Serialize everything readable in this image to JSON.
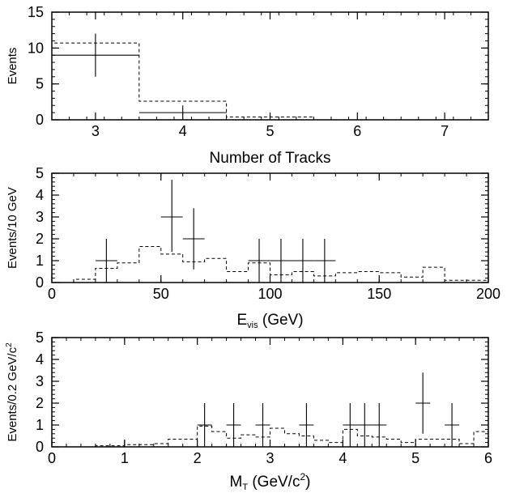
{
  "chart_data": [
    {
      "type": "histogram",
      "ylabel": "Events",
      "xlabel": "Number of Tracks",
      "xlim": [
        2.5,
        7.5
      ],
      "ylim": [
        0,
        15
      ],
      "xticks": [
        3,
        4,
        5,
        6,
        7
      ],
      "yticks": [
        0,
        5,
        10,
        15
      ],
      "series": [
        {
          "style": "data",
          "points": [
            {
              "x": 3,
              "y": 9,
              "xerr": 0.5,
              "yerr": [
                3,
                3
              ]
            },
            {
              "x": 4,
              "y": 1,
              "xerr": 0.5,
              "yerr": [
                0,
                1
              ]
            }
          ]
        },
        {
          "style": "dashed-histogram",
          "bins": [
            {
              "x0": 2.5,
              "x1": 3.5,
              "y": 10.7
            },
            {
              "x0": 3.5,
              "x1": 4.5,
              "y": 2.6
            },
            {
              "x0": 4.5,
              "x1": 5.5,
              "y": 0.4
            }
          ]
        }
      ]
    },
    {
      "type": "histogram",
      "ylabel": "Events/10 GeV",
      "xlabel_main": "E",
      "xlabel_sub": "vis",
      "xlabel_rest": " (GeV)",
      "xlim": [
        0,
        200
      ],
      "ylim": [
        0,
        5
      ],
      "xticks": [
        0,
        50,
        100,
        150,
        200
      ],
      "yticks": [
        0,
        1,
        2,
        3,
        4,
        5
      ],
      "series": [
        {
          "style": "data",
          "points": [
            {
              "x": 25,
              "y": 1,
              "xerr": 5,
              "yerr": [
                1,
                1
              ]
            },
            {
              "x": 55,
              "y": 3,
              "xerr": 5,
              "yerr": [
                1.6,
                1.7
              ]
            },
            {
              "x": 65,
              "y": 2,
              "xerr": 5,
              "yerr": [
                1.4,
                1.4
              ]
            },
            {
              "x": 95,
              "y": 1,
              "xerr": 5,
              "yerr": [
                1,
                1
              ]
            },
            {
              "x": 105,
              "y": 1,
              "xerr": 5,
              "yerr": [
                1,
                1
              ]
            },
            {
              "x": 115,
              "y": 1,
              "xerr": 5,
              "yerr": [
                1,
                1
              ]
            },
            {
              "x": 125,
              "y": 1,
              "xerr": 5,
              "yerr": [
                1,
                1
              ]
            }
          ]
        },
        {
          "style": "dashed-histogram",
          "bins": [
            {
              "x0": 10,
              "x1": 20,
              "y": 0.15
            },
            {
              "x0": 20,
              "x1": 30,
              "y": 0.65
            },
            {
              "x0": 30,
              "x1": 40,
              "y": 0.9
            },
            {
              "x0": 40,
              "x1": 50,
              "y": 1.65
            },
            {
              "x0": 50,
              "x1": 60,
              "y": 1.3
            },
            {
              "x0": 60,
              "x1": 70,
              "y": 0.95
            },
            {
              "x0": 70,
              "x1": 80,
              "y": 1.1
            },
            {
              "x0": 80,
              "x1": 90,
              "y": 0.5
            },
            {
              "x0": 90,
              "x1": 100,
              "y": 0.9
            },
            {
              "x0": 100,
              "x1": 110,
              "y": 0.35
            },
            {
              "x0": 110,
              "x1": 120,
              "y": 0.5
            },
            {
              "x0": 120,
              "x1": 130,
              "y": 0.3
            },
            {
              "x0": 130,
              "x1": 140,
              "y": 0.45
            },
            {
              "x0": 140,
              "x1": 150,
              "y": 0.5
            },
            {
              "x0": 150,
              "x1": 160,
              "y": 0.45
            },
            {
              "x0": 160,
              "x1": 170,
              "y": 0.25
            },
            {
              "x0": 170,
              "x1": 180,
              "y": 0.7
            },
            {
              "x0": 180,
              "x1": 200,
              "y": 0.1
            }
          ]
        }
      ]
    },
    {
      "type": "histogram",
      "ylabel_main": "Events/0.2 GeV/c",
      "ylabel_sup": "2",
      "xlabel_main": "M",
      "xlabel_sub": "T",
      "xlabel_rest": " (GeV/c",
      "xlabel_sup": "2",
      "xlabel_end": ")",
      "xlim": [
        0,
        6
      ],
      "ylim": [
        0,
        5
      ],
      "xticks": [
        0,
        1,
        2,
        3,
        4,
        5,
        6
      ],
      "yticks": [
        0,
        1,
        2,
        3,
        4,
        5
      ],
      "series": [
        {
          "style": "data",
          "points": [
            {
              "x": 1.0,
              "y": 0,
              "xerr": 0,
              "yerr": [
                0,
                0.3
              ]
            },
            {
              "x": 2.1,
              "y": 1,
              "xerr": 0.1,
              "yerr": [
                1,
                1
              ]
            },
            {
              "x": 2.5,
              "y": 1,
              "xerr": 0.1,
              "yerr": [
                1,
                1
              ]
            },
            {
              "x": 2.9,
              "y": 1,
              "xerr": 0.1,
              "yerr": [
                1,
                1
              ]
            },
            {
              "x": 3.5,
              "y": 1,
              "xerr": 0.1,
              "yerr": [
                1,
                1
              ]
            },
            {
              "x": 4.1,
              "y": 1,
              "xerr": 0.1,
              "yerr": [
                1,
                1
              ]
            },
            {
              "x": 4.3,
              "y": 1,
              "xerr": 0.1,
              "yerr": [
                1,
                1
              ]
            },
            {
              "x": 4.5,
              "y": 1,
              "xerr": 0.1,
              "yerr": [
                1,
                1
              ]
            },
            {
              "x": 5.1,
              "y": 2,
              "xerr": 0.1,
              "yerr": [
                1.4,
                1.4
              ]
            },
            {
              "x": 5.5,
              "y": 1,
              "xerr": 0.1,
              "yerr": [
                1,
                1
              ]
            }
          ]
        },
        {
          "style": "dashed-histogram",
          "bins": [
            {
              "x0": 0.6,
              "x1": 1.0,
              "y": 0.05
            },
            {
              "x0": 1.0,
              "x1": 1.4,
              "y": 0.1
            },
            {
              "x0": 1.4,
              "x1": 1.6,
              "y": 0.15
            },
            {
              "x0": 1.6,
              "x1": 2.0,
              "y": 0.35
            },
            {
              "x0": 2.0,
              "x1": 2.2,
              "y": 0.95
            },
            {
              "x0": 2.2,
              "x1": 2.4,
              "y": 0.7
            },
            {
              "x0": 2.4,
              "x1": 2.6,
              "y": 0.4
            },
            {
              "x0": 2.6,
              "x1": 2.8,
              "y": 0.55
            },
            {
              "x0": 2.8,
              "x1": 3.0,
              "y": 0.45
            },
            {
              "x0": 3.0,
              "x1": 3.2,
              "y": 0.85
            },
            {
              "x0": 3.2,
              "x1": 3.4,
              "y": 0.6
            },
            {
              "x0": 3.4,
              "x1": 3.6,
              "y": 0.5
            },
            {
              "x0": 3.6,
              "x1": 3.8,
              "y": 0.3
            },
            {
              "x0": 3.8,
              "x1": 4.0,
              "y": 0.2
            },
            {
              "x0": 4.0,
              "x1": 4.2,
              "y": 0.8
            },
            {
              "x0": 4.2,
              "x1": 4.4,
              "y": 0.5
            },
            {
              "x0": 4.4,
              "x1": 4.6,
              "y": 0.45
            },
            {
              "x0": 4.6,
              "x1": 4.8,
              "y": 0.35
            },
            {
              "x0": 4.8,
              "x1": 5.0,
              "y": 0.2
            },
            {
              "x0": 5.0,
              "x1": 5.6,
              "y": 0.35
            },
            {
              "x0": 5.6,
              "x1": 5.8,
              "y": 0.15
            },
            {
              "x0": 5.8,
              "x1": 6.0,
              "y": 0.7
            }
          ]
        }
      ]
    }
  ]
}
